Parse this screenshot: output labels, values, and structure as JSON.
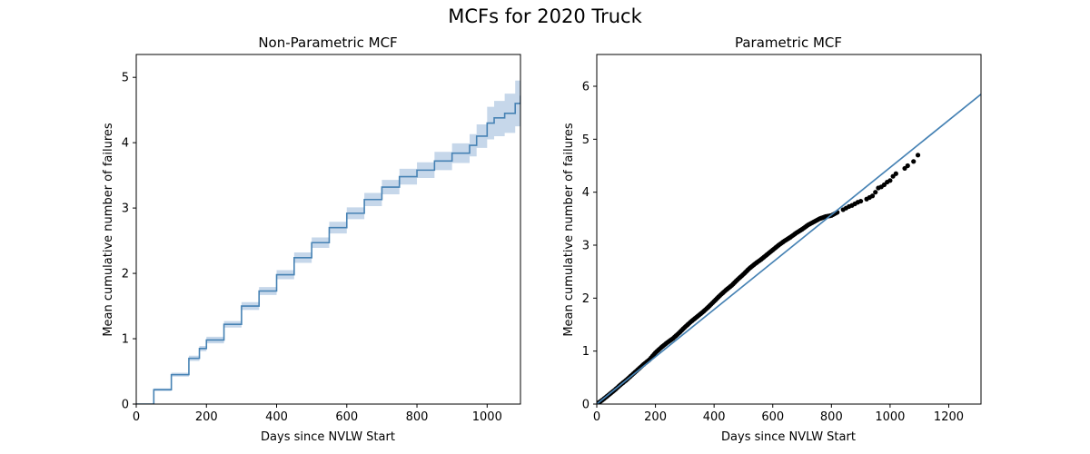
{
  "figure": {
    "suptitle": "MCFs for 2020 Truck"
  },
  "chart_data": [
    {
      "type": "line",
      "title": "Non-Parametric MCF",
      "xlabel": "Days since NVLW Start",
      "ylabel": "Mean cumulative number of failures",
      "xlim": [
        0,
        1095
      ],
      "ylim": [
        0,
        5.35
      ],
      "xticks": [
        0,
        200,
        400,
        600,
        800,
        1000
      ],
      "yticks": [
        0,
        1,
        2,
        3,
        4,
        5
      ],
      "line_color": "#4682b4",
      "band_color": "#c6d7ea",
      "series": [
        {
          "x": [
            0,
            50,
            100,
            150,
            180,
            200,
            250,
            300,
            350,
            400,
            450,
            500,
            550,
            600,
            650,
            700,
            750,
            800,
            850,
            900,
            950,
            970,
            1000,
            1020,
            1050,
            1080,
            1095
          ],
          "y": [
            0,
            0.22,
            0.45,
            0.7,
            0.85,
            0.98,
            1.22,
            1.5,
            1.73,
            1.98,
            2.24,
            2.47,
            2.7,
            2.92,
            3.13,
            3.32,
            3.48,
            3.58,
            3.72,
            3.84,
            3.96,
            4.1,
            4.3,
            4.38,
            4.45,
            4.6,
            4.72
          ],
          "lower": [
            0,
            0.2,
            0.42,
            0.66,
            0.81,
            0.93,
            1.17,
            1.44,
            1.67,
            1.91,
            2.16,
            2.39,
            2.61,
            2.83,
            3.03,
            3.21,
            3.36,
            3.46,
            3.58,
            3.69,
            3.79,
            3.92,
            4.05,
            4.1,
            4.15,
            4.25,
            4.35
          ],
          "upper": [
            0,
            0.24,
            0.48,
            0.74,
            0.89,
            1.03,
            1.27,
            1.56,
            1.79,
            2.05,
            2.32,
            2.55,
            2.79,
            3.01,
            3.23,
            3.43,
            3.6,
            3.7,
            3.86,
            3.99,
            4.13,
            4.28,
            4.55,
            4.64,
            4.75,
            4.95,
            5.08
          ]
        }
      ]
    },
    {
      "type": "scatter",
      "title": "Parametric MCF",
      "xlabel": "Days since NVLW Start",
      "ylabel": "Mean cumulative number of failures",
      "xlim": [
        0,
        1310
      ],
      "ylim": [
        0,
        6.6
      ],
      "xticks": [
        0,
        200,
        400,
        600,
        800,
        1000,
        1200
      ],
      "yticks": [
        0,
        1,
        2,
        3,
        4,
        5,
        6
      ],
      "fit_line": {
        "color": "#4682b4",
        "x": [
          0,
          1310
        ],
        "y": [
          0,
          5.85
        ]
      },
      "point_color": "#000000",
      "points": {
        "x": [
          5,
          20,
          40,
          60,
          80,
          100,
          120,
          140,
          160,
          180,
          200,
          220,
          240,
          260,
          280,
          300,
          320,
          340,
          360,
          380,
          400,
          420,
          440,
          460,
          480,
          500,
          520,
          540,
          560,
          580,
          600,
          620,
          640,
          660,
          680,
          700,
          720,
          740,
          760,
          780,
          800,
          820,
          840,
          850,
          860,
          870,
          880,
          890,
          900,
          920,
          930,
          940,
          950,
          960,
          970,
          980,
          990,
          1000,
          1010,
          1020,
          1050,
          1060,
          1080,
          1095
        ],
        "y": [
          0.02,
          0.08,
          0.17,
          0.26,
          0.36,
          0.45,
          0.55,
          0.65,
          0.75,
          0.84,
          0.97,
          1.07,
          1.16,
          1.24,
          1.34,
          1.45,
          1.55,
          1.64,
          1.73,
          1.83,
          1.94,
          2.05,
          2.15,
          2.24,
          2.35,
          2.45,
          2.56,
          2.65,
          2.73,
          2.82,
          2.91,
          3.0,
          3.08,
          3.15,
          3.23,
          3.3,
          3.38,
          3.44,
          3.5,
          3.54,
          3.56,
          3.62,
          3.67,
          3.7,
          3.73,
          3.75,
          3.78,
          3.81,
          3.83,
          3.87,
          3.9,
          3.93,
          4.0,
          4.08,
          4.1,
          4.14,
          4.19,
          4.22,
          4.3,
          4.35,
          4.45,
          4.5,
          4.58,
          4.7
        ]
      }
    }
  ]
}
